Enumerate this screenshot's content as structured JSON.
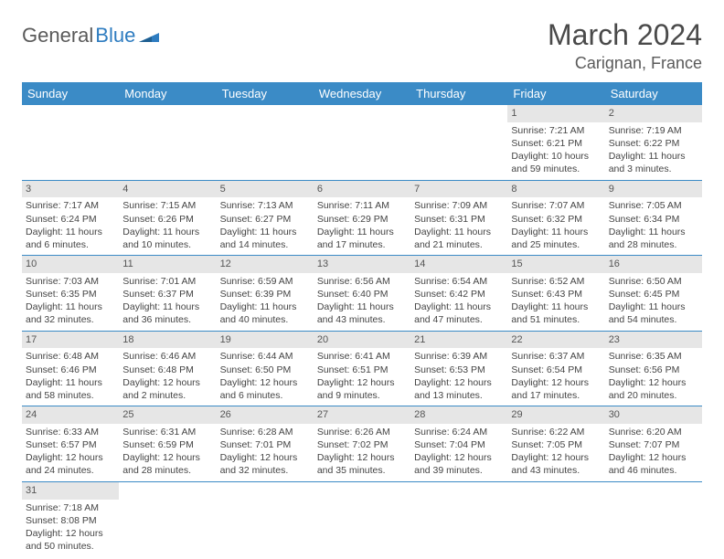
{
  "logo": {
    "general": "General",
    "blue": "Blue"
  },
  "title": "March 2024",
  "location": "Carignan, France",
  "header_bg": "#3b8bc6",
  "daynum_bg": "#e6e6e6",
  "dayNames": [
    "Sunday",
    "Monday",
    "Tuesday",
    "Wednesday",
    "Thursday",
    "Friday",
    "Saturday"
  ],
  "weeks": [
    [
      {
        "empty": true
      },
      {
        "empty": true
      },
      {
        "empty": true
      },
      {
        "empty": true
      },
      {
        "empty": true
      },
      {
        "num": "1",
        "sunrise": "Sunrise: 7:21 AM",
        "sunset": "Sunset: 6:21 PM",
        "daylight": "Daylight: 10 hours and 59 minutes."
      },
      {
        "num": "2",
        "sunrise": "Sunrise: 7:19 AM",
        "sunset": "Sunset: 6:22 PM",
        "daylight": "Daylight: 11 hours and 3 minutes."
      }
    ],
    [
      {
        "num": "3",
        "sunrise": "Sunrise: 7:17 AM",
        "sunset": "Sunset: 6:24 PM",
        "daylight": "Daylight: 11 hours and 6 minutes."
      },
      {
        "num": "4",
        "sunrise": "Sunrise: 7:15 AM",
        "sunset": "Sunset: 6:26 PM",
        "daylight": "Daylight: 11 hours and 10 minutes."
      },
      {
        "num": "5",
        "sunrise": "Sunrise: 7:13 AM",
        "sunset": "Sunset: 6:27 PM",
        "daylight": "Daylight: 11 hours and 14 minutes."
      },
      {
        "num": "6",
        "sunrise": "Sunrise: 7:11 AM",
        "sunset": "Sunset: 6:29 PM",
        "daylight": "Daylight: 11 hours and 17 minutes."
      },
      {
        "num": "7",
        "sunrise": "Sunrise: 7:09 AM",
        "sunset": "Sunset: 6:31 PM",
        "daylight": "Daylight: 11 hours and 21 minutes."
      },
      {
        "num": "8",
        "sunrise": "Sunrise: 7:07 AM",
        "sunset": "Sunset: 6:32 PM",
        "daylight": "Daylight: 11 hours and 25 minutes."
      },
      {
        "num": "9",
        "sunrise": "Sunrise: 7:05 AM",
        "sunset": "Sunset: 6:34 PM",
        "daylight": "Daylight: 11 hours and 28 minutes."
      }
    ],
    [
      {
        "num": "10",
        "sunrise": "Sunrise: 7:03 AM",
        "sunset": "Sunset: 6:35 PM",
        "daylight": "Daylight: 11 hours and 32 minutes."
      },
      {
        "num": "11",
        "sunrise": "Sunrise: 7:01 AM",
        "sunset": "Sunset: 6:37 PM",
        "daylight": "Daylight: 11 hours and 36 minutes."
      },
      {
        "num": "12",
        "sunrise": "Sunrise: 6:59 AM",
        "sunset": "Sunset: 6:39 PM",
        "daylight": "Daylight: 11 hours and 40 minutes."
      },
      {
        "num": "13",
        "sunrise": "Sunrise: 6:56 AM",
        "sunset": "Sunset: 6:40 PM",
        "daylight": "Daylight: 11 hours and 43 minutes."
      },
      {
        "num": "14",
        "sunrise": "Sunrise: 6:54 AM",
        "sunset": "Sunset: 6:42 PM",
        "daylight": "Daylight: 11 hours and 47 minutes."
      },
      {
        "num": "15",
        "sunrise": "Sunrise: 6:52 AM",
        "sunset": "Sunset: 6:43 PM",
        "daylight": "Daylight: 11 hours and 51 minutes."
      },
      {
        "num": "16",
        "sunrise": "Sunrise: 6:50 AM",
        "sunset": "Sunset: 6:45 PM",
        "daylight": "Daylight: 11 hours and 54 minutes."
      }
    ],
    [
      {
        "num": "17",
        "sunrise": "Sunrise: 6:48 AM",
        "sunset": "Sunset: 6:46 PM",
        "daylight": "Daylight: 11 hours and 58 minutes."
      },
      {
        "num": "18",
        "sunrise": "Sunrise: 6:46 AM",
        "sunset": "Sunset: 6:48 PM",
        "daylight": "Daylight: 12 hours and 2 minutes."
      },
      {
        "num": "19",
        "sunrise": "Sunrise: 6:44 AM",
        "sunset": "Sunset: 6:50 PM",
        "daylight": "Daylight: 12 hours and 6 minutes."
      },
      {
        "num": "20",
        "sunrise": "Sunrise: 6:41 AM",
        "sunset": "Sunset: 6:51 PM",
        "daylight": "Daylight: 12 hours and 9 minutes."
      },
      {
        "num": "21",
        "sunrise": "Sunrise: 6:39 AM",
        "sunset": "Sunset: 6:53 PM",
        "daylight": "Daylight: 12 hours and 13 minutes."
      },
      {
        "num": "22",
        "sunrise": "Sunrise: 6:37 AM",
        "sunset": "Sunset: 6:54 PM",
        "daylight": "Daylight: 12 hours and 17 minutes."
      },
      {
        "num": "23",
        "sunrise": "Sunrise: 6:35 AM",
        "sunset": "Sunset: 6:56 PM",
        "daylight": "Daylight: 12 hours and 20 minutes."
      }
    ],
    [
      {
        "num": "24",
        "sunrise": "Sunrise: 6:33 AM",
        "sunset": "Sunset: 6:57 PM",
        "daylight": "Daylight: 12 hours and 24 minutes."
      },
      {
        "num": "25",
        "sunrise": "Sunrise: 6:31 AM",
        "sunset": "Sunset: 6:59 PM",
        "daylight": "Daylight: 12 hours and 28 minutes."
      },
      {
        "num": "26",
        "sunrise": "Sunrise: 6:28 AM",
        "sunset": "Sunset: 7:01 PM",
        "daylight": "Daylight: 12 hours and 32 minutes."
      },
      {
        "num": "27",
        "sunrise": "Sunrise: 6:26 AM",
        "sunset": "Sunset: 7:02 PM",
        "daylight": "Daylight: 12 hours and 35 minutes."
      },
      {
        "num": "28",
        "sunrise": "Sunrise: 6:24 AM",
        "sunset": "Sunset: 7:04 PM",
        "daylight": "Daylight: 12 hours and 39 minutes."
      },
      {
        "num": "29",
        "sunrise": "Sunrise: 6:22 AM",
        "sunset": "Sunset: 7:05 PM",
        "daylight": "Daylight: 12 hours and 43 minutes."
      },
      {
        "num": "30",
        "sunrise": "Sunrise: 6:20 AM",
        "sunset": "Sunset: 7:07 PM",
        "daylight": "Daylight: 12 hours and 46 minutes."
      }
    ],
    [
      {
        "num": "31",
        "sunrise": "Sunrise: 7:18 AM",
        "sunset": "Sunset: 8:08 PM",
        "daylight": "Daylight: 12 hours and 50 minutes."
      },
      {
        "empty": true
      },
      {
        "empty": true
      },
      {
        "empty": true
      },
      {
        "empty": true
      },
      {
        "empty": true
      },
      {
        "empty": true
      }
    ]
  ]
}
